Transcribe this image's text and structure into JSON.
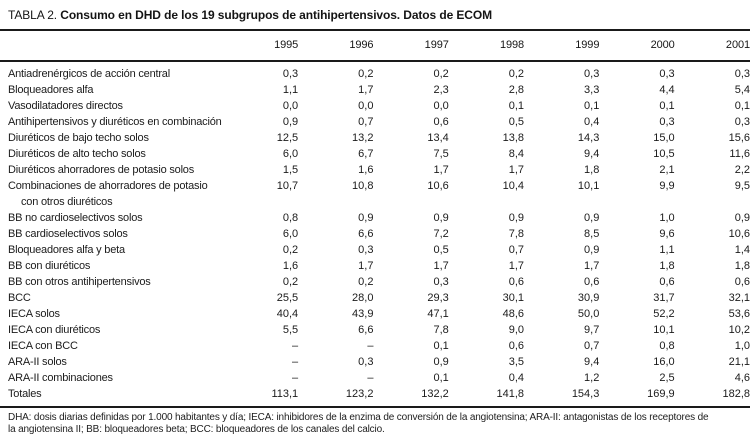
{
  "title": {
    "prefix": "TABLA 2.",
    "main": "Consumo en DHD de los 19 subgrupos de antihipertensivos. Datos de ECOM"
  },
  "table": {
    "years": [
      "1995",
      "1996",
      "1997",
      "1998",
      "1999",
      "2000",
      "2001"
    ],
    "rows": [
      {
        "label": "Antiadrenérgicos de acción central",
        "values": [
          "0,3",
          "0,2",
          "0,2",
          "0,2",
          "0,3",
          "0,3",
          "0,3"
        ]
      },
      {
        "label": "Bloqueadores alfa",
        "values": [
          "1,1",
          "1,7",
          "2,3",
          "2,8",
          "3,3",
          "4,4",
          "5,4"
        ]
      },
      {
        "label": "Vasodilatadores directos",
        "values": [
          "0,0",
          "0,0",
          "0,0",
          "0,1",
          "0,1",
          "0,1",
          "0,1"
        ]
      },
      {
        "label": "Antihipertensivos y diuréticos en combinación",
        "values": [
          "0,9",
          "0,7",
          "0,6",
          "0,5",
          "0,4",
          "0,3",
          "0,3"
        ]
      },
      {
        "label": "Diuréticos de bajo techo solos",
        "values": [
          "12,5",
          "13,2",
          "13,4",
          "13,8",
          "14,3",
          "15,0",
          "15,6"
        ]
      },
      {
        "label": "Diuréticos de alto techo solos",
        "values": [
          "6,0",
          "6,7",
          "7,5",
          "8,4",
          "9,4",
          "10,5",
          "11,6"
        ]
      },
      {
        "label": "Diuréticos ahorradores de potasio solos",
        "values": [
          "1,5",
          "1,6",
          "1,7",
          "1,7",
          "1,8",
          "2,1",
          "2,2"
        ]
      },
      {
        "label": "Combinaciones de ahorradores de potasio",
        "label2": "con otros diuréticos",
        "values": [
          "10,7",
          "10,8",
          "10,6",
          "10,4",
          "10,1",
          "9,9",
          "9,5"
        ]
      },
      {
        "label": "BB no cardioselectivos solos",
        "values": [
          "0,8",
          "0,9",
          "0,9",
          "0,9",
          "0,9",
          "1,0",
          "0,9"
        ]
      },
      {
        "label": "BB cardioselectivos solos",
        "values": [
          "6,0",
          "6,6",
          "7,2",
          "7,8",
          "8,5",
          "9,6",
          "10,6"
        ]
      },
      {
        "label": "Bloqueadores alfa y beta",
        "values": [
          "0,2",
          "0,3",
          "0,5",
          "0,7",
          "0,9",
          "1,1",
          "1,4"
        ]
      },
      {
        "label": "BB con diuréticos",
        "values": [
          "1,6",
          "1,7",
          "1,7",
          "1,7",
          "1,7",
          "1,8",
          "1,8"
        ]
      },
      {
        "label": "BB con otros antihipertensivos",
        "values": [
          "0,2",
          "0,2",
          "0,3",
          "0,6",
          "0,6",
          "0,6",
          "0,6"
        ]
      },
      {
        "label": "BCC",
        "values": [
          "25,5",
          "28,0",
          "29,3",
          "30,1",
          "30,9",
          "31,7",
          "32,1"
        ]
      },
      {
        "label": "IECA solos",
        "values": [
          "40,4",
          "43,9",
          "47,1",
          "48,6",
          "50,0",
          "52,2",
          "53,6"
        ]
      },
      {
        "label": "IECA con diuréticos",
        "values": [
          "5,5",
          "6,6",
          "7,8",
          "9,0",
          "9,7",
          "10,1",
          "10,2"
        ]
      },
      {
        "label": "IECA con BCC",
        "values": [
          "–",
          "–",
          "0,1",
          "0,6",
          "0,7",
          "0,8",
          "1,0"
        ]
      },
      {
        "label": "ARA-II solos",
        "values": [
          "–",
          "0,3",
          "0,9",
          "3,5",
          "9,4",
          "16,0",
          "21,1"
        ]
      },
      {
        "label": "ARA-II combinaciones",
        "values": [
          "–",
          "–",
          "0,1",
          "0,4",
          "1,2",
          "2,5",
          "4,6"
        ]
      },
      {
        "label": "Totales",
        "values": [
          "113,1",
          "123,2",
          "132,2",
          "141,8",
          "154,3",
          "169,9",
          "182,8"
        ]
      }
    ]
  },
  "footnote": {
    "lines": [
      "DHA: dosis diarias definidas por 1.000 habitantes y día; IECA: inhibidores de la enzima de conversión de la angiotensina; ARA-II: antagonistas de los receptores de",
      "la angiotensina II; BB: bloqueadores beta; BCC: bloqueadores de los canales del calcio."
    ]
  },
  "colors": {
    "text": "#1b1b1b",
    "rule": "#1a1a1a",
    "background": "#ffffff"
  }
}
